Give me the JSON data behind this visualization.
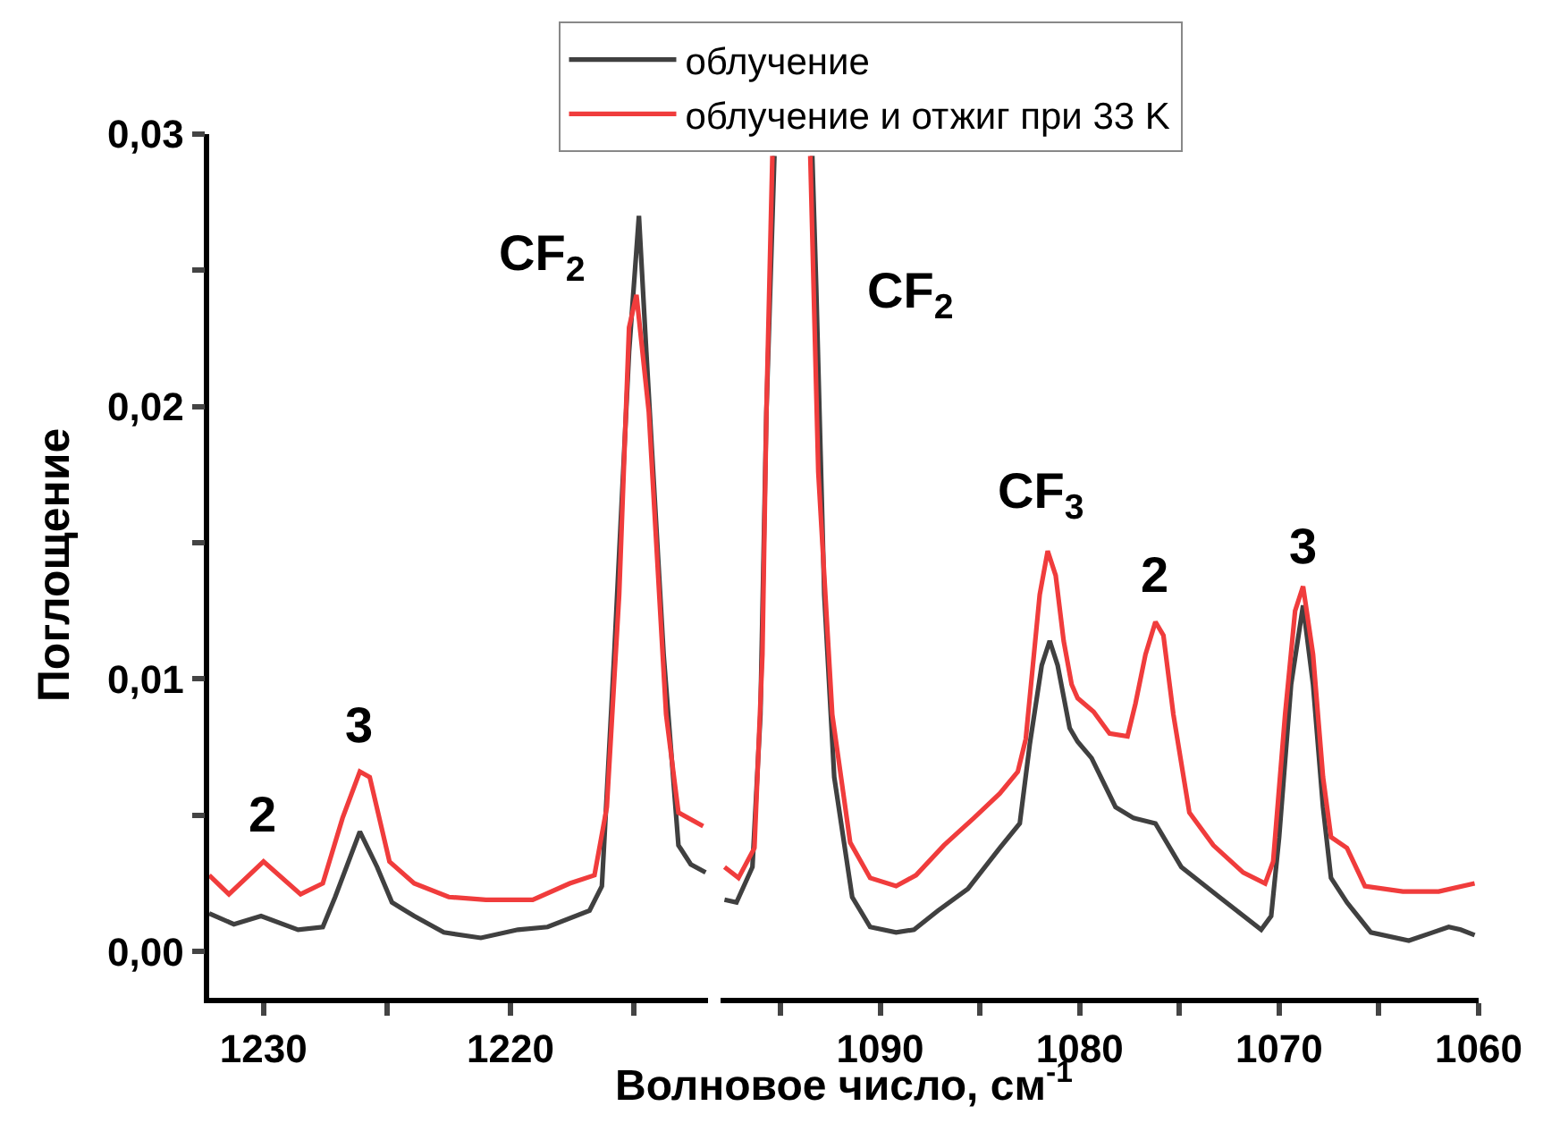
{
  "chart_data": [
    {
      "type": "line",
      "xlabel": "Волновое число, см$^{-1}$",
      "ylabel": "Поглощение",
      "legend": "top",
      "marker": "none",
      "line_style": "solid",
      "xlim": [
        1232.2,
        1212
      ],
      "ylim": [
        -0.0017,
        0.03
      ],
      "xticks": [
        1230,
        {
          "value": 1225,
          "label": null
        },
        1220,
        {
          "value": 1215,
          "label": null
        }
      ],
      "yticks": [
        {
          "value": 0,
          "label": "0,00"
        },
        {
          "value": 0.005,
          "label": null
        },
        {
          "value": 0.01,
          "label": "0,01"
        },
        {
          "value": 0.015,
          "label": null
        },
        {
          "value": 0.02,
          "label": "0,02"
        },
        {
          "value": 0.025,
          "label": null
        },
        {
          "value": 0.03,
          "label": "0,03"
        }
      ],
      "annotations": [
        {
          "text": "2",
          "x": 1230.0,
          "y": 0.0033
        },
        {
          "text": "3",
          "x": 1226.1,
          "y": 0.0066
        },
        {
          "text": "CF$_{2}$",
          "x": 1214.8,
          "y": 0.027
        }
      ],
      "series": [
        {
          "name": "облучение",
          "color": "#404040",
          "x": [
            1232.2,
            1231.2,
            1230.1,
            1228.6,
            1227.6,
            1227.1,
            1226.1,
            1225.4,
            1224.8,
            1223.9,
            1222.7,
            1221.2,
            1219.7,
            1218.5,
            1216.8,
            1216.3,
            1215.8,
            1215.2,
            1214.8,
            1214.5,
            1213.8,
            1213.2,
            1212.7,
            1212.1
          ],
          "values": [
            0.0014,
            0.001,
            0.0013,
            0.0008,
            0.0009,
            0.002,
            0.0044,
            0.0031,
            0.0018,
            0.0013,
            0.0007,
            0.0005,
            0.0008,
            0.0009,
            0.0015,
            0.0024,
            0.0109,
            0.022,
            0.027,
            0.022,
            0.0109,
            0.0039,
            0.0032,
            0.0029
          ]
        },
        {
          "name": "облучение и отжиг при 33 K",
          "color": "#f03c3c",
          "x": [
            1232.2,
            1231.4,
            1230.0,
            1228.5,
            1227.6,
            1226.8,
            1226.1,
            1225.7,
            1224.9,
            1223.9,
            1222.5,
            1221.0,
            1219.1,
            1217.6,
            1216.6,
            1216.1,
            1215.6,
            1215.2,
            1214.9,
            1214.4,
            1213.7,
            1213.2,
            1212.2
          ],
          "values": [
            0.0028,
            0.0021,
            0.0033,
            0.0021,
            0.0025,
            0.0049,
            0.0066,
            0.0064,
            0.0033,
            0.0025,
            0.002,
            0.0019,
            0.0019,
            0.0025,
            0.0028,
            0.0053,
            0.0131,
            0.0229,
            0.0241,
            0.0198,
            0.0087,
            0.0051,
            0.0046
          ]
        }
      ]
    },
    {
      "type": "line",
      "tick_labels": "x",
      "marker": "none",
      "line_style": "solid",
      "xlim": [
        1098,
        1060
      ],
      "ylim": [
        -0.0017,
        0.03
      ],
      "xticks": [
        {
          "value": 1095,
          "label": null
        },
        1090,
        {
          "value": 1085,
          "label": null
        },
        1080,
        {
          "value": 1075,
          "label": null
        },
        1070,
        {
          "value": 1065,
          "label": null
        },
        1060
      ],
      "annotations": [
        {
          "text": "CF$_{2}$",
          "x": 1093.2,
          "y": 0.0243
        },
        {
          "text": "CF$_{3}$",
          "x": 1081.6,
          "y": 0.0147
        },
        {
          "text": "2",
          "x": 1076.2,
          "y": 0.0121
        },
        {
          "text": "3",
          "x": 1068.8,
          "y": 0.0134
        }
      ],
      "series": [
        {
          "color": "#404040",
          "x": [
            1097.8,
            1097.2,
            1096.4,
            1096.0,
            1095.7,
            1095.3,
            1094.4,
            1093.4,
            1093.2,
            1092.8,
            1092.3,
            1091.4,
            1090.5,
            1089.2,
            1088.3,
            1087.1,
            1085.6,
            1084.0,
            1083.0,
            1082.5,
            1081.9,
            1081.5,
            1081.1,
            1080.5,
            1080.1,
            1079.4,
            1078.2,
            1077.3,
            1076.2,
            1074.9,
            1073.0,
            1070.9,
            1070.4,
            1070.0,
            1069.4,
            1068.8,
            1068.3,
            1067.8,
            1067.4,
            1066.6,
            1065.4,
            1063.5,
            1062.3,
            1061.5,
            1060.9,
            1060.2
          ],
          "values": [
            0.0019,
            0.0018,
            0.0031,
            0.0087,
            0.0198,
            0.0292,
            null,
            0.0292,
            0.0243,
            0.0131,
            0.0064,
            0.002,
            0.0009,
            0.0007,
            0.0008,
            0.0015,
            0.0023,
            0.0038,
            0.0047,
            0.0076,
            0.0105,
            0.0114,
            0.0105,
            0.0082,
            0.0077,
            0.0071,
            0.0053,
            0.0049,
            0.0047,
            0.0031,
            0.002,
            0.0008,
            0.0013,
            0.0042,
            0.0098,
            0.0127,
            0.0098,
            0.0053,
            0.0027,
            0.0018,
            0.0007,
            0.0004,
            0.0007,
            0.0009,
            0.0008,
            0.0006
          ]
        },
        {
          "color": "#f03c3c",
          "x": [
            1097.8,
            1097.1,
            1096.3,
            1095.9,
            1095.7,
            1095.4,
            1094.4,
            1093.5,
            1093.1,
            1092.4,
            1091.5,
            1090.5,
            1089.2,
            1088.2,
            1086.8,
            1085.3,
            1084.0,
            1083.1,
            1082.7,
            1082.0,
            1081.6,
            1081.2,
            1080.8,
            1080.4,
            1080.1,
            1079.3,
            1078.5,
            1077.6,
            1077.2,
            1076.7,
            1076.2,
            1075.8,
            1075.3,
            1074.5,
            1073.3,
            1071.8,
            1070.7,
            1070.3,
            1069.7,
            1069.2,
            1068.8,
            1068.3,
            1067.8,
            1067.4,
            1066.6,
            1065.7,
            1063.8,
            1062.0,
            1060.2
          ],
          "values": [
            0.0031,
            0.0027,
            0.0038,
            0.0109,
            0.0198,
            0.0292,
            null,
            0.0292,
            0.0176,
            0.0087,
            0.004,
            0.0027,
            0.0024,
            0.0028,
            0.0039,
            0.0049,
            0.0058,
            0.0066,
            0.0078,
            0.0131,
            0.0147,
            0.0138,
            0.0114,
            0.0098,
            0.0093,
            0.0088,
            0.008,
            0.0079,
            0.0091,
            0.0109,
            0.0121,
            0.0116,
            0.0087,
            0.0051,
            0.0039,
            0.0029,
            0.0025,
            0.0033,
            0.0087,
            0.0125,
            0.0134,
            0.0109,
            0.0064,
            0.0042,
            0.0038,
            0.0024,
            0.0022,
            0.0022,
            0.0025
          ]
        }
      ]
    }
  ]
}
